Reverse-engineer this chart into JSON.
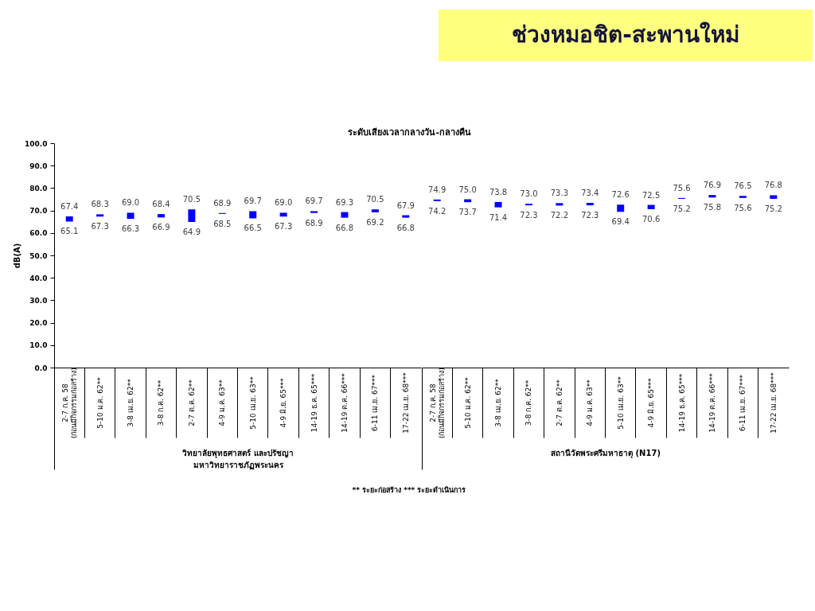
{
  "chart_data": [
    {
      "type": "bar",
      "title": "ระดับเสียงเวลากลางวัน-กลางคืน",
      "ylabel": "dB(A)",
      "xlabel": "วิทยาลัยพุทธศาสตร์ และปรัชญา\nมหาวิทยาราชภัฏพระนคร",
      "categories": [
        "2-7 ก.ค. 58\n(ก่อนมีกิจกรรมก่อสร้าง)",
        "5-10 ม.ค. 62**",
        "3-8 เม.ย. 62**",
        "3-8 ก.ค. 62**",
        "2-7 ต.ค. 62**",
        "4-9 ม.ค. 63**",
        "5-10 เม.ย. 63**",
        "4-9 มิ.ย. 65***",
        "14-19 ธ.ค. 65***",
        "14-19 ต.ค. 66***",
        "6-11 เม.ย. 67***",
        "17-22 เม.ย. 68***"
      ],
      "base": [
        65.1,
        67.3,
        66.3,
        66.9,
        64.9,
        68.5,
        66.5,
        67.3,
        68.9,
        66.8,
        69.2,
        66.8
      ],
      "values": [
        2.3,
        1.0,
        2.7,
        1.5,
        5.6,
        0.4,
        3.2,
        1.7,
        0.8,
        2.5,
        1.3,
        1.1
      ],
      "color": "#0000ff",
      "ylim": [
        0,
        100
      ],
      "yticks": [
        {
          "value": 0,
          "label": "0.0"
        },
        {
          "value": 10,
          "label": "10.0"
        },
        {
          "value": 20,
          "label": "20.0"
        },
        {
          "value": 30,
          "label": "30.0"
        },
        {
          "value": 40,
          "label": "40.0"
        },
        {
          "value": 50,
          "label": "50.0"
        },
        {
          "value": 60,
          "label": "60.0"
        },
        {
          "value": 70,
          "label": "70.0"
        },
        {
          "value": 80,
          "label": "80.0"
        },
        {
          "value": 90,
          "label": "90.0"
        },
        {
          "value": 100,
          "label": "100.0"
        }
      ],
      "annotations": [
        {
          "text": "67.4",
          "x": "2-7 ก.ค. 58\n(ก่อนมีกิจกรรมก่อสร้าง)",
          "y": 67.4
        },
        {
          "text": "65.1",
          "x": "2-7 ก.ค. 58\n(ก่อนมีกิจกรรมก่อสร้าง)",
          "y": 65.1
        },
        {
          "text": "68.3",
          "x": "5-10 ม.ค. 62**",
          "y": 68.3
        },
        {
          "text": "67.3",
          "x": "5-10 ม.ค. 62**",
          "y": 67.3
        },
        {
          "text": "69.0",
          "x": "3-8 เม.ย. 62**",
          "y": 69.0
        },
        {
          "text": "66.3",
          "x": "3-8 เม.ย. 62**",
          "y": 66.3
        },
        {
          "text": "68.4",
          "x": "3-8 ก.ค. 62**",
          "y": 68.4
        },
        {
          "text": "66.9",
          "x": "3-8 ก.ค. 62**",
          "y": 66.9
        },
        {
          "text": "70.5",
          "x": "2-7 ต.ค. 62**",
          "y": 70.5
        },
        {
          "text": "64.9",
          "x": "2-7 ต.ค. 62**",
          "y": 64.9
        },
        {
          "text": "68.9",
          "x": "4-9 ม.ค. 63**",
          "y": 68.9
        },
        {
          "text": "68.5",
          "x": "4-9 ม.ค. 63**",
          "y": 68.5
        },
        {
          "text": "69.7",
          "x": "5-10 เม.ย. 63**",
          "y": 69.7
        },
        {
          "text": "66.5",
          "x": "5-10 เม.ย. 63**",
          "y": 66.5
        },
        {
          "text": "69.0",
          "x": "4-9 มิ.ย. 65***",
          "y": 69.0
        },
        {
          "text": "67.3",
          "x": "4-9 มิ.ย. 65***",
          "y": 67.3
        },
        {
          "text": "69.7",
          "x": "14-19 ธ.ค. 65***",
          "y": 69.7
        },
        {
          "text": "68.9",
          "x": "14-19 ธ.ค. 65***",
          "y": 68.9
        },
        {
          "text": "69.3",
          "x": "14-19 ต.ค. 66***",
          "y": 69.3
        },
        {
          "text": "66.8",
          "x": "14-19 ต.ค. 66***",
          "y": 66.8
        },
        {
          "text": "70.5",
          "x": "6-11 เม.ย. 67***",
          "y": 70.5
        },
        {
          "text": "69.2",
          "x": "6-11 เม.ย. 67***",
          "y": 69.2
        },
        {
          "text": "67.9",
          "x": "17-22 เม.ย. 68***",
          "y": 67.9
        },
        {
          "text": "66.8",
          "x": "17-22 เม.ย. 68***",
          "y": 66.8
        },
        "** ระยะก่อสร้าง   *** ระยะดำเนินการ"
      ]
    },
    {
      "type": "bar",
      "title": "ช่วงหมอชิต-สะพานใหม่",
      "xlabel": "สถานีวัดพระศรีมหาธาตุ (N17)",
      "categories": [
        "2-7 ก.ค. 58\n(ก่อนมีกิจกรรมก่อสร้าง)",
        "5-10 ม.ค. 62**",
        "3-8 เม.ย. 62**",
        "3-8 ก.ค. 62**",
        "2-7 ต.ค. 62**",
        "4-9 ม.ค. 63**",
        "5-10 เม.ย. 63**",
        "4-9 มิ.ย. 65***",
        "14-19 ธ.ค. 65***",
        "14-19 ต.ค. 66***",
        "6-11 เม.ย. 67***",
        "17-22 เม.ย. 68***"
      ],
      "base": [
        74.2,
        73.7,
        71.4,
        72.3,
        72.2,
        72.3,
        69.4,
        70.6,
        75.2,
        75.8,
        75.6,
        75.2
      ],
      "values": [
        0.7,
        1.3,
        2.4,
        0.7,
        1.1,
        1.1,
        3.2,
        1.9,
        0.4,
        1.1,
        0.9,
        1.6
      ],
      "color": "#0000ff",
      "ylim": [
        0,
        100
      ],
      "tick_labels": "x",
      "annotations": [
        {
          "text": "74.9",
          "x": "2-7 ก.ค. 58\n(ก่อนมีกิจกรรมก่อสร้าง)",
          "y": 74.9
        },
        {
          "text": "74.2",
          "x": "2-7 ก.ค. 58\n(ก่อนมีกิจกรรมก่อสร้าง)",
          "y": 74.2
        },
        {
          "text": "75.0",
          "x": "5-10 ม.ค. 62**",
          "y": 75.0
        },
        {
          "text": "73.7",
          "x": "5-10 ม.ค. 62**",
          "y": 73.7
        },
        {
          "text": "73.8",
          "x": "3-8 เม.ย. 62**",
          "y": 73.8
        },
        {
          "text": "71.4",
          "x": "3-8 เม.ย. 62**",
          "y": 71.4
        },
        {
          "text": "73.0",
          "x": "3-8 ก.ค. 62**",
          "y": 73.0
        },
        {
          "text": "72.3",
          "x": "3-8 ก.ค. 62**",
          "y": 72.3
        },
        {
          "text": "73.3",
          "x": "2-7 ต.ค. 62**",
          "y": 73.3
        },
        {
          "text": "72.2",
          "x": "2-7 ต.ค. 62**",
          "y": 72.2
        },
        {
          "text": "73.4",
          "x": "4-9 ม.ค. 63**",
          "y": 73.4
        },
        {
          "text": "72.3",
          "x": "4-9 ม.ค. 63**",
          "y": 72.3
        },
        {
          "text": "72.6",
          "x": "5-10 เม.ย. 63**",
          "y": 72.6
        },
        {
          "text": "69.4",
          "x": "5-10 เม.ย. 63**",
          "y": 69.4
        },
        {
          "text": "72.5",
          "x": "4-9 มิ.ย. 65***",
          "y": 72.5
        },
        {
          "text": "70.6",
          "x": "4-9 มิ.ย. 65***",
          "y": 70.6
        },
        {
          "text": "75.6",
          "x": "14-19 ธ.ค. 65***",
          "y": 75.6
        },
        {
          "text": "75.2",
          "x": "14-19 ธ.ค. 65***",
          "y": 75.2
        },
        {
          "text": "76.9",
          "x": "14-19 ต.ค. 66***",
          "y": 76.9
        },
        {
          "text": "75.8",
          "x": "14-19 ต.ค. 66***",
          "y": 75.8
        },
        {
          "text": "76.5",
          "x": "6-11 เม.ย. 67***",
          "y": 76.5
        },
        {
          "text": "75.6",
          "x": "6-11 เม.ย. 67***",
          "y": 75.6
        },
        {
          "text": "76.8",
          "x": "17-22 เม.ย. 68***",
          "y": 76.8
        },
        {
          "text": "75.2",
          "x": "17-22 เม.ย. 68***",
          "y": 75.2
        }
      ]
    }
  ]
}
